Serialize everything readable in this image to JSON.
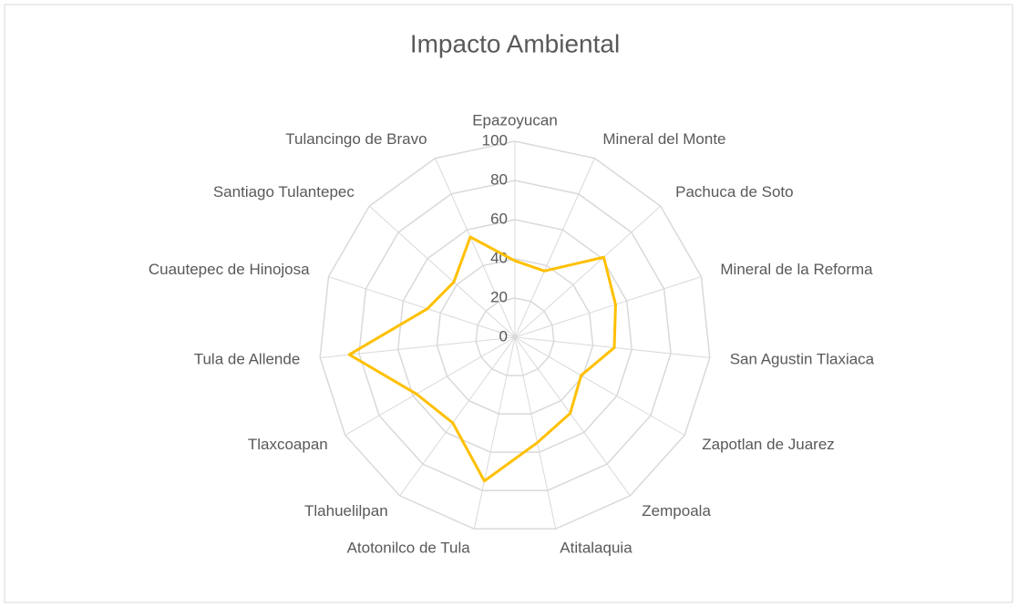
{
  "chart_data": {
    "type": "radar",
    "title": "Impacto Ambiental",
    "categories": [
      "Epazoyucan",
      "Mineral del Monte",
      "Pachuca de Soto",
      "Mineral de la Reforma",
      "San Agustin Tlaxiaca",
      "Zapotlan de Juarez",
      "Zempoala",
      "Atitalaquia",
      "Atotonilco de Tula",
      "Tlahuelilpan",
      "Tlaxcoapan",
      "Tula de Allende",
      "Cuautepec de Hinojosa",
      "Santiago Tulantepec",
      "Tulancingo de Bravo"
    ],
    "values": [
      39,
      37,
      61,
      54,
      51,
      39,
      48,
      55,
      75,
      54,
      58,
      85,
      47,
      42,
      56
    ],
    "color": "#ffc000",
    "ylim": [
      0,
      100
    ],
    "yticks": [
      0,
      20,
      40,
      60,
      80,
      100
    ],
    "grid": true
  }
}
